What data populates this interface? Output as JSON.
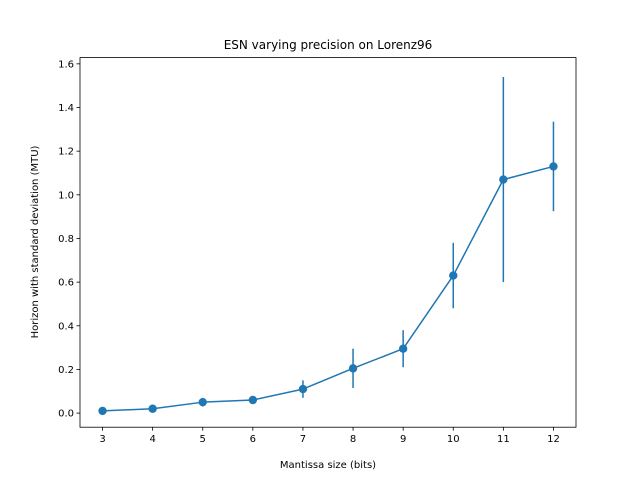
{
  "chart_data": {
    "type": "line",
    "title": "ESN varying precision on Lorenz96",
    "xlabel": "Mantissa size (bits)",
    "ylabel": "Horizon with standard deviation (MTU)",
    "x": [
      3,
      4,
      5,
      6,
      7,
      8,
      9,
      10,
      11,
      12
    ],
    "series": [
      {
        "values": [
          0.01,
          0.02,
          0.05,
          0.06,
          0.11,
          0.205,
          0.295,
          0.63,
          1.07,
          1.13
        ],
        "yerr": [
          0.005,
          0.008,
          0.02,
          0.015,
          0.04,
          0.09,
          0.085,
          0.15,
          0.47,
          0.205
        ]
      }
    ],
    "xticks": [
      "3",
      "4",
      "5",
      "6",
      "7",
      "8",
      "9",
      "10",
      "11",
      "12"
    ],
    "yticks": [
      "0.0",
      "0.2",
      "0.4",
      "0.6",
      "0.8",
      "1.0",
      "1.2",
      "1.4",
      "1.6"
    ],
    "xlim": [
      2.55,
      12.45
    ],
    "ylim": [
      -0.0646,
      1.6286
    ],
    "grid": false,
    "color": "#1f77b4"
  }
}
